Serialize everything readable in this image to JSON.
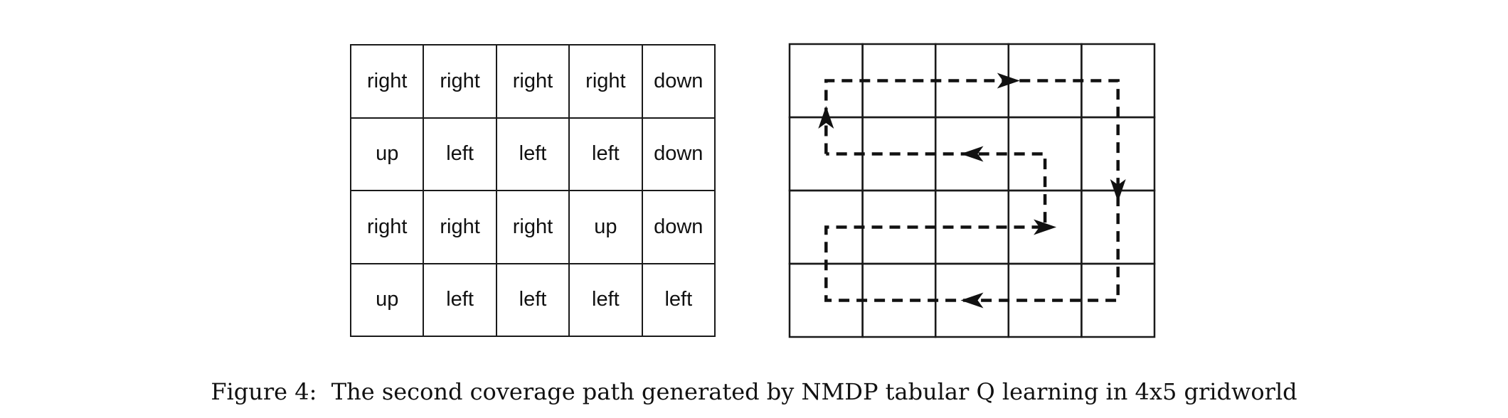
{
  "figure": {
    "label": "Figure 4:",
    "caption": "The second coverage path generated by NMDP tabular Q learning in 4x5 gridworld"
  },
  "policy_grid": {
    "rows": 4,
    "cols": 5,
    "cells": [
      [
        "right",
        "right",
        "right",
        "right",
        "down"
      ],
      [
        "up",
        "left",
        "left",
        "left",
        "down"
      ],
      [
        "right",
        "right",
        "right",
        "up",
        "down"
      ],
      [
        "up",
        "left",
        "left",
        "left",
        "left"
      ]
    ]
  },
  "path_grid": {
    "rows": 4,
    "cols": 5,
    "line_style": "dashed",
    "path": [
      [
        1,
        0
      ],
      [
        0,
        0
      ],
      [
        0,
        1
      ],
      [
        0,
        2
      ],
      [
        0,
        3
      ],
      [
        0,
        4
      ],
      [
        1,
        4
      ],
      [
        2,
        4
      ],
      [
        3,
        4
      ],
      [
        3,
        3
      ],
      [
        3,
        2
      ],
      [
        3,
        1
      ],
      [
        3,
        0
      ],
      [
        2,
        0
      ],
      [
        2,
        1
      ],
      [
        2,
        2
      ],
      [
        2,
        3
      ],
      [
        1,
        3
      ],
      [
        1,
        2
      ],
      [
        1,
        1
      ],
      [
        1,
        0
      ]
    ],
    "arrows": [
      {
        "row": 0.5,
        "col": 0,
        "direction": "up"
      },
      {
        "row": 0,
        "col": 2.5,
        "direction": "right"
      },
      {
        "row": 1.5,
        "col": 4,
        "direction": "down"
      },
      {
        "row": 3,
        "col": 2,
        "direction": "left"
      },
      {
        "row": 2,
        "col": 3,
        "direction": "right"
      },
      {
        "row": 1,
        "col": 2,
        "direction": "left"
      }
    ]
  }
}
